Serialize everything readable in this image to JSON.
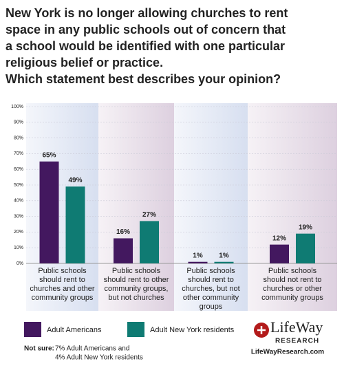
{
  "chart_data": {
    "type": "bar",
    "title": [
      "New York is no longer allowing churches to rent",
      "space in any public schools out of concern that",
      "a school would be identified with one particular",
      "religious belief or practice.",
      "Which statement best describes your opinion?"
    ],
    "categories": [
      "Public schools should rent to churches and other community groups",
      "Public schools should rent to other community groups, but not churches",
      "Public schools should rent to churches, but not other community groups",
      "Public schools should not rent to churches or other community groups"
    ],
    "series": [
      {
        "name": "Adult Americans",
        "color": "#43185f",
        "values": [
          65,
          16,
          1,
          12
        ],
        "value_labels": [
          "65%",
          "16%",
          "1%",
          "12%"
        ]
      },
      {
        "name": "Adult New York residents",
        "color": "#0f7b73",
        "values": [
          49,
          27,
          1,
          19
        ],
        "value_labels": [
          "49%",
          "27%",
          "1%",
          "19%"
        ]
      }
    ],
    "ylim": [
      0,
      100
    ],
    "yticks": [
      {
        "value": 0,
        "label": "0%"
      },
      {
        "value": 10,
        "label": "10%"
      },
      {
        "value": 20,
        "label": "20%"
      },
      {
        "value": 30,
        "label": "30%"
      },
      {
        "value": 40,
        "label": "40%"
      },
      {
        "value": 50,
        "label": "50%"
      },
      {
        "value": 60,
        "label": "60%"
      },
      {
        "value": 70,
        "label": "70%"
      },
      {
        "value": 80,
        "label": "80%"
      },
      {
        "value": 90,
        "label": "90%"
      },
      {
        "value": 100,
        "label": "100%"
      }
    ],
    "grid": true,
    "note_label": "Not sure:",
    "note": [
      "7% Adult Americans and",
      "4% Adult New York residents"
    ],
    "logo": [
      "LifeWay",
      "RESEARCH"
    ],
    "url": "LifeWayResearch.com"
  }
}
